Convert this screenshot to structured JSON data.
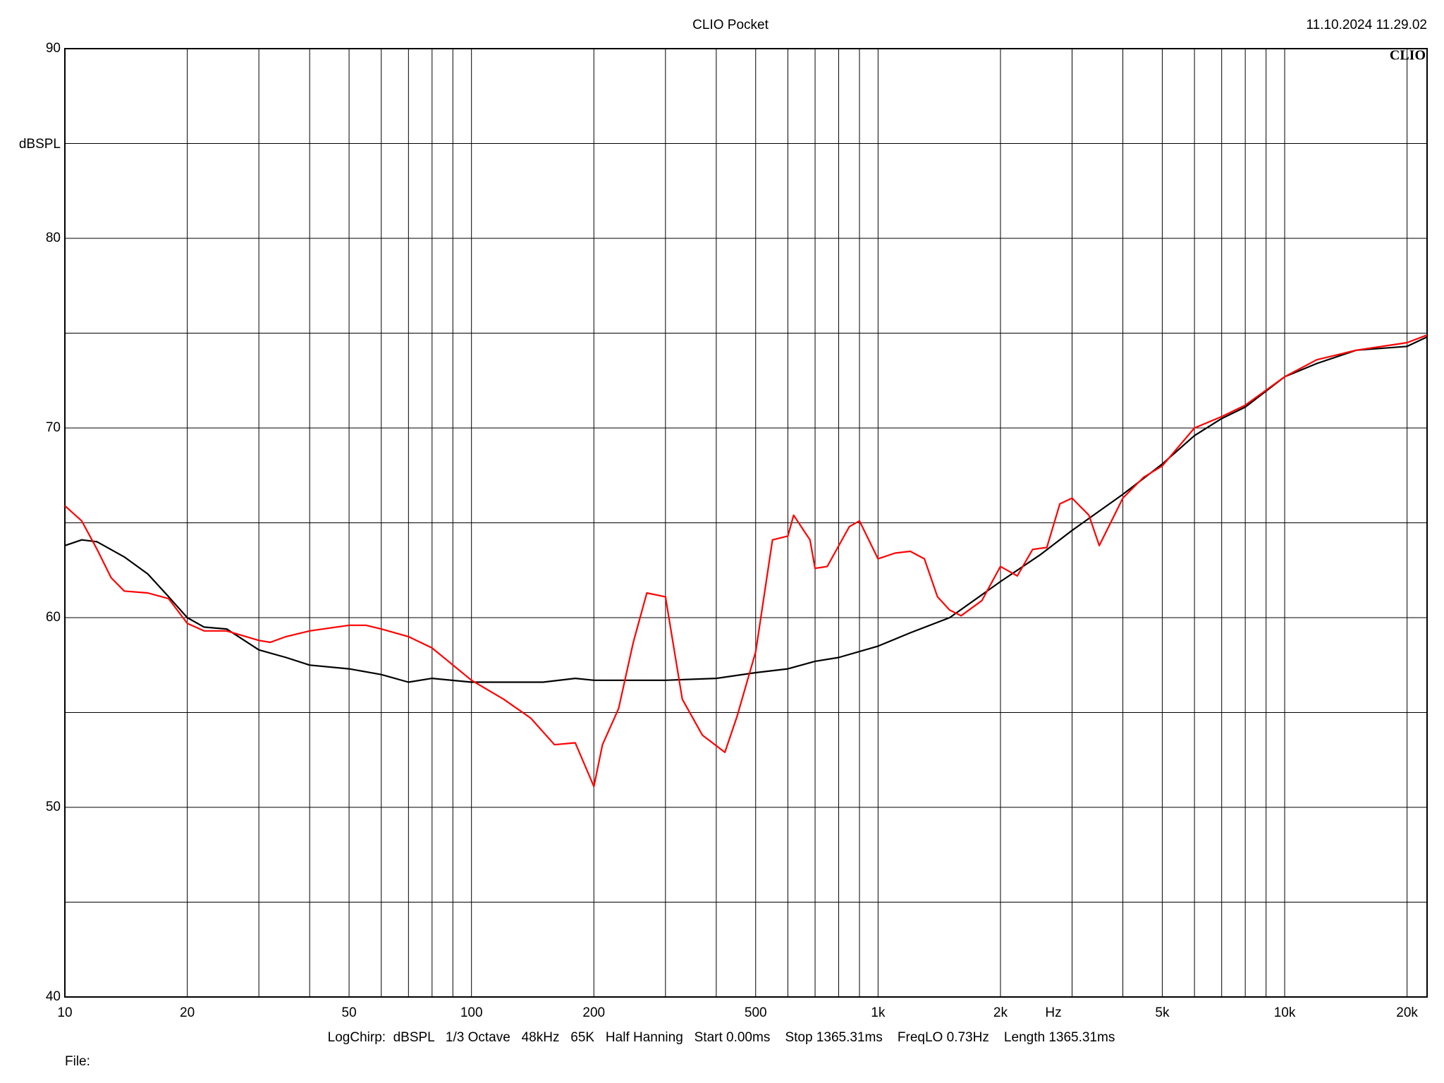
{
  "chart_data": {
    "type": "line",
    "title": "CLIO Pocket",
    "timestamp": "11.10.2024 11.29.02",
    "logo": "CLIO",
    "y_label": "dBSPL",
    "x_label": "Hz",
    "footer": "LogChirp:  dBSPL   1/3 Octave   48kHz   65K   Half Hanning   Start 0.00ms    Stop 1365.31ms    FreqLO 0.73Hz    Length 1365.31ms",
    "file_label": "File:",
    "x_log": true,
    "grid": true,
    "xlim": [
      10,
      22400
    ],
    "ylim": [
      40,
      90
    ],
    "yticks": [
      40,
      50,
      60,
      70,
      80,
      90
    ],
    "minor_yticks": [
      45,
      55,
      65,
      75,
      85
    ],
    "xticks": [
      10,
      20,
      50,
      100,
      200,
      500,
      {
        "value": 1000,
        "label": "1k"
      },
      {
        "value": 2000,
        "label": "2k"
      },
      {
        "value": 5000,
        "label": "5k"
      },
      {
        "value": 10000,
        "label": "10k"
      },
      {
        "value": 20000,
        "label": "20k"
      }
    ],
    "minor_xticks": [
      30,
      40,
      60,
      70,
      80,
      90,
      300,
      400,
      600,
      700,
      800,
      900,
      3000,
      4000,
      6000,
      7000,
      8000,
      9000
    ],
    "series": [
      {
        "color": "#000000",
        "x": [
          10,
          11,
          12,
          14,
          16,
          18,
          20,
          22,
          25,
          30,
          35,
          40,
          50,
          60,
          70,
          80,
          100,
          120,
          150,
          180,
          200,
          250,
          300,
          400,
          500,
          600,
          700,
          800,
          1000,
          1200,
          1500,
          2000,
          2500,
          3000,
          4000,
          5000,
          6000,
          7000,
          8000,
          10000,
          12000,
          15000,
          20000,
          22400
        ],
        "values": [
          63.8,
          64.1,
          64.0,
          63.2,
          62.3,
          61.1,
          60.0,
          59.5,
          59.4,
          58.3,
          57.9,
          57.5,
          57.3,
          57.0,
          56.6,
          56.8,
          56.6,
          56.6,
          56.6,
          56.8,
          56.7,
          56.7,
          56.7,
          56.8,
          57.1,
          57.3,
          57.7,
          57.9,
          58.5,
          59.2,
          60.0,
          61.9,
          63.3,
          64.6,
          66.5,
          68.1,
          69.6,
          70.5,
          71.1,
          72.7,
          73.4,
          74.1,
          74.3,
          74.8
        ]
      },
      {
        "color": "#ff0000",
        "x": [
          10,
          11,
          12,
          13,
          14,
          16,
          18,
          20,
          22,
          25,
          30,
          32,
          35,
          40,
          50,
          55,
          60,
          70,
          80,
          100,
          120,
          140,
          160,
          180,
          200,
          210,
          230,
          250,
          270,
          300,
          330,
          370,
          420,
          450,
          500,
          550,
          600,
          620,
          680,
          700,
          750,
          850,
          900,
          1000,
          1100,
          1200,
          1300,
          1400,
          1500,
          1600,
          1800,
          2000,
          2200,
          2400,
          2600,
          2800,
          3000,
          3300,
          3500,
          4000,
          4500,
          5000,
          6000,
          7000,
          8000,
          10000,
          12000,
          15000,
          20000,
          22400
        ],
        "values": [
          65.9,
          65.1,
          63.6,
          62.1,
          61.4,
          61.3,
          61.0,
          59.7,
          59.3,
          59.3,
          58.8,
          58.7,
          59.0,
          59.3,
          59.6,
          59.6,
          59.4,
          59.0,
          58.4,
          56.7,
          55.7,
          54.7,
          53.3,
          53.4,
          51.1,
          53.3,
          55.2,
          58.7,
          61.3,
          61.1,
          55.7,
          53.8,
          52.9,
          54.8,
          58.2,
          64.1,
          64.3,
          65.4,
          64.1,
          62.6,
          62.7,
          64.8,
          65.1,
          63.1,
          63.4,
          63.5,
          63.1,
          61.1,
          60.4,
          60.1,
          60.9,
          62.7,
          62.2,
          63.6,
          63.7,
          66.0,
          66.3,
          65.4,
          63.8,
          66.3,
          67.4,
          68.0,
          70.0,
          70.6,
          71.2,
          72.7,
          73.6,
          74.1,
          74.5,
          74.9
        ]
      }
    ]
  }
}
